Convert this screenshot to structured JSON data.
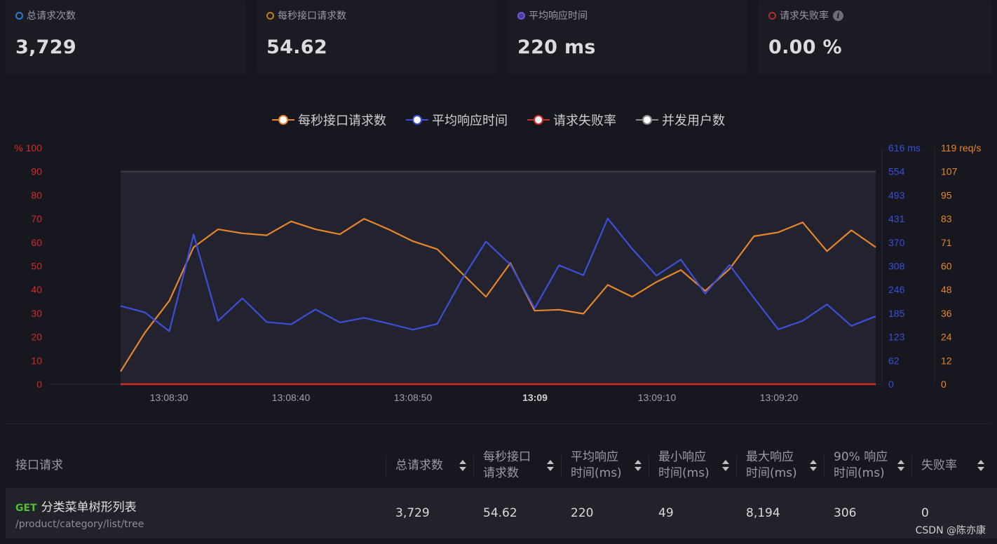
{
  "stats": [
    {
      "label": "总请求次数",
      "value": "3,729",
      "color": "#2d7bd1",
      "info": false
    },
    {
      "label": "每秒接口请求数",
      "value": "54.62",
      "color": "#c47a1f",
      "info": false
    },
    {
      "label": "平均响应时间",
      "value": "220 ms",
      "color": "#6b57d6",
      "info": false
    },
    {
      "label": "请求失败率",
      "value": "0.00 %",
      "color": "#b32d2d",
      "info": true
    }
  ],
  "legend": [
    {
      "name": "每秒接口请求数",
      "color": "#e6862b"
    },
    {
      "name": "平均响应时间",
      "color": "#3b4fd8"
    },
    {
      "name": "请求失败率",
      "color": "#d42a2a"
    },
    {
      "name": "并发用户数",
      "color": "#8a8a8a"
    }
  ],
  "chart_data": {
    "type": "line",
    "x_labels": [
      "13:08:30",
      "13:08:40",
      "13:08:50",
      "13:09",
      "13:09:10",
      "13:09:20"
    ],
    "x_label_bold": [
      false,
      false,
      false,
      true,
      false,
      false
    ],
    "left_axis": {
      "unit": "% 100",
      "ticks": [
        "90",
        "80",
        "70",
        "60",
        "50",
        "40",
        "30",
        "20",
        "10",
        "0"
      ],
      "color": "#d42a2a",
      "range": [
        0,
        100
      ]
    },
    "right_axis_1": {
      "ticks": [
        "616 ms",
        "554",
        "493",
        "431",
        "370",
        "308",
        "246",
        "185",
        "123",
        "62",
        "0"
      ],
      "color": "#3b4fd8",
      "range": [
        0,
        616
      ]
    },
    "right_axis_2": {
      "ticks": [
        "119 req/s",
        "107",
        "95",
        "83",
        "71",
        "60",
        "48",
        "36",
        "24",
        "12",
        "0"
      ],
      "color": "#e6862b",
      "range": [
        0,
        119
      ]
    },
    "series": [
      {
        "name": "每秒接口请求数",
        "axis": "req",
        "color": "#e6862b",
        "values": [
          6.4,
          26,
          42,
          69,
          78,
          76,
          75,
          82,
          78,
          75.5,
          83.3,
          78,
          72,
          68,
          56,
          44,
          61,
          37,
          37.5,
          35.5,
          50,
          44,
          51.5,
          57.5,
          47,
          58,
          74.5,
          76.5,
          81.5,
          67,
          77.5,
          69
        ]
      },
      {
        "name": "平均响应时间",
        "axis": "ms",
        "color": "#3b4fd8",
        "values": [
          204,
          187,
          138,
          390,
          165,
          224,
          162,
          156,
          195,
          161,
          173,
          158,
          142,
          157,
          272,
          372,
          312,
          198,
          310,
          284,
          432,
          353,
          283,
          325,
          236,
          311,
          225,
          143,
          165,
          208,
          152,
          177
        ]
      },
      {
        "name": "请求失败率",
        "axis": "pct",
        "color": "#d42a2a",
        "values": [
          0,
          0
        ]
      },
      {
        "name": "并发用户数",
        "axis": "pct",
        "color": "#3a3a44",
        "values": [
          90,
          90
        ]
      }
    ]
  },
  "table": {
    "headers": [
      "接口请求",
      "总请求数",
      "每秒接口\n请求数",
      "平均响应\n时间(ms)",
      "最小响应\n时间(ms)",
      "最大响应\n时间(ms)",
      "90% 响应\n时间(ms)",
      "失败率"
    ],
    "rows": [
      {
        "method": "GET",
        "name": "分类菜单树形列表",
        "path": "/product/category/list/tree",
        "total": "3,729",
        "rps": "54.62",
        "avg": "220",
        "min": "49",
        "max": "8,194",
        "p90": "306",
        "fail": "0"
      }
    ]
  },
  "watermark": "CSDN @陈亦康"
}
